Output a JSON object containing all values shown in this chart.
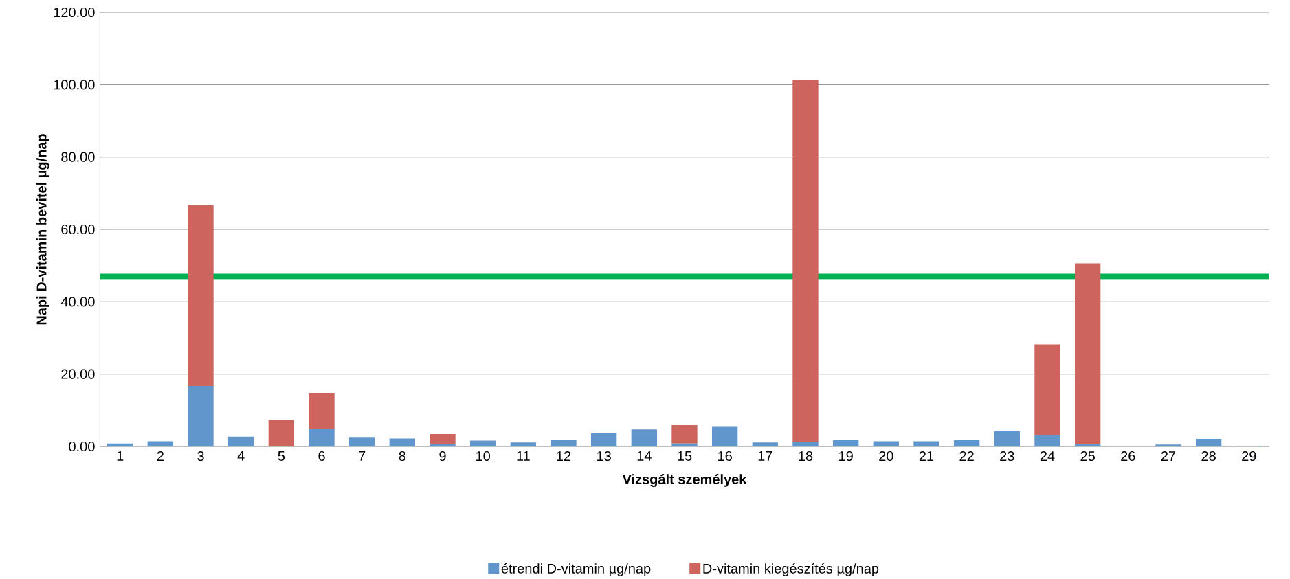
{
  "chart_data": {
    "type": "bar",
    "stacked": true,
    "xlabel": "Vizsgált személyek",
    "ylabel": "Napi D-vitamin bevitel µg/nap",
    "categories": [
      "1",
      "2",
      "3",
      "4",
      "5",
      "6",
      "7",
      "8",
      "9",
      "10",
      "11",
      "12",
      "13",
      "14",
      "15",
      "16",
      "17",
      "18",
      "19",
      "20",
      "21",
      "22",
      "23",
      "24",
      "25",
      "26",
      "27",
      "28",
      "29"
    ],
    "series": [
      {
        "name": "étrendi D-vitamin µg/nap",
        "color": "#6096cc",
        "values": [
          0.8,
          1.4,
          16.7,
          2.7,
          0,
          4.8,
          2.6,
          2.2,
          0.7,
          1.6,
          1.1,
          1.9,
          3.6,
          4.7,
          0.8,
          5.6,
          1.1,
          1.3,
          1.7,
          1.4,
          1.4,
          1.7,
          4.2,
          3.2,
          0.6,
          0,
          0.5,
          2.1,
          0.2
        ]
      },
      {
        "name": "D-vitamin kiegészítés µg/nap",
        "color": "#cd645d",
        "values": [
          0,
          0,
          50,
          0,
          7.3,
          10,
          0,
          0,
          2.7,
          0,
          0,
          0,
          0,
          0,
          5.1,
          0,
          0,
          100,
          0,
          0,
          0,
          0,
          0,
          25,
          50,
          0,
          0,
          0,
          0
        ]
      }
    ],
    "ylim": [
      0,
      120
    ],
    "yticks": [
      {
        "value": 0,
        "label": "0.00"
      },
      {
        "value": 20,
        "label": "20.00"
      },
      {
        "value": 40,
        "label": "40.00"
      },
      {
        "value": 60,
        "label": "60.00"
      },
      {
        "value": 80,
        "label": "80.00"
      },
      {
        "value": 100,
        "label": "100.00"
      },
      {
        "value": 120,
        "label": "120.00"
      }
    ],
    "grid": "y",
    "legend": "bottom",
    "ref_lines": [
      {
        "axis": "y",
        "value": 47,
        "color": "#00b050"
      }
    ]
  }
}
